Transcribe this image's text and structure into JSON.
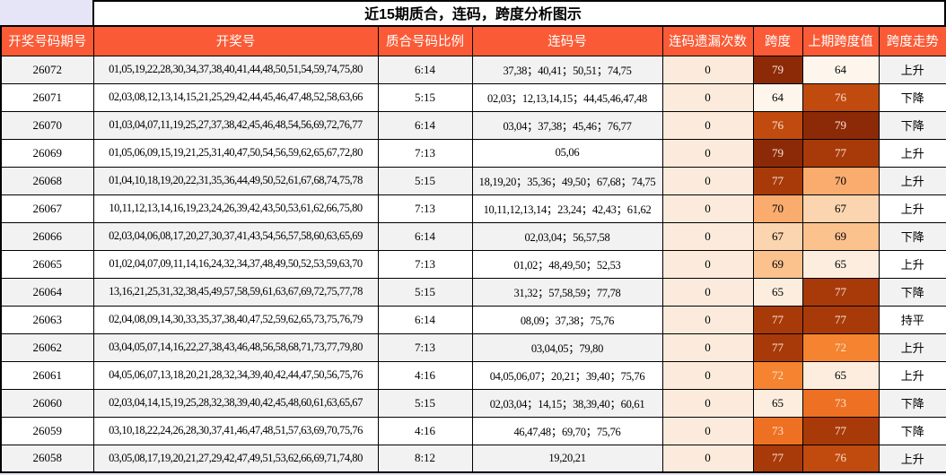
{
  "title": "近15期质合，连码，跨度分析图示",
  "palette": {
    "page_bg": "#E6E5F7",
    "title_bg": "#FFFFFF",
    "border": "#000000",
    "header_bg": "#FB5A36",
    "header_fg": "#FFFFFF",
    "row_bg": "#FFFFFF",
    "row_alt_bg": "#F2F2F2",
    "miss_bg": "#FCEBDC",
    "heat_light_text": "#F9E2D2",
    "heat_dark_text": "#000000"
  },
  "heat_colors": {
    "64": "#FEF5EC",
    "65": "#FCEDDF",
    "67": "#FBD5AF",
    "69": "#FBC28E",
    "70": "#FAAC6E",
    "72": "#F5832F",
    "73": "#EE7123",
    "76": "#C14A0F",
    "77": "#A83A0A",
    "79": "#8C2A08"
  },
  "heat_white_text_min": 72,
  "chart_data": {
    "type": "table",
    "title": "近15期质合，连码，跨度分析图示",
    "columns": [
      {
        "key": "period",
        "label": "开奖号码期号"
      },
      {
        "key": "numbers",
        "label": "开奖号"
      },
      {
        "key": "ratio",
        "label": "质合号码比例"
      },
      {
        "key": "consecutive",
        "label": "连码号"
      },
      {
        "key": "miss",
        "label": "连码遗漏次数"
      },
      {
        "key": "span",
        "label": "跨度"
      },
      {
        "key": "prev_span",
        "label": "上期跨度值"
      },
      {
        "key": "trend",
        "label": "跨度走势"
      }
    ],
    "rows": [
      {
        "period": "26072",
        "numbers": "01,05,19,22,28,30,34,37,38,40,41,44,48,50,51,54,59,74,75,80",
        "ratio": "6:14",
        "consecutive": "37,38；40,41；50,51；74,75",
        "miss": "0",
        "span": 79,
        "prev_span": 64,
        "trend": "上升"
      },
      {
        "period": "26071",
        "numbers": "02,03,08,12,13,14,15,21,25,29,42,44,45,46,47,48,52,58,63,66",
        "ratio": "5:15",
        "consecutive": "02,03；12,13,14,15；44,45,46,47,48",
        "miss": "0",
        "span": 64,
        "prev_span": 76,
        "trend": "下降"
      },
      {
        "period": "26070",
        "numbers": "01,03,04,07,11,19,25,27,37,38,42,45,46,48,54,56,69,72,76,77",
        "ratio": "6:14",
        "consecutive": "03,04；37,38；45,46；76,77",
        "miss": "0",
        "span": 76,
        "prev_span": 79,
        "trend": "下降"
      },
      {
        "period": "26069",
        "numbers": "01,05,06,09,15,19,21,25,31,40,47,50,54,56,59,62,65,67,72,80",
        "ratio": "7:13",
        "consecutive": "05,06",
        "miss": "0",
        "span": 79,
        "prev_span": 77,
        "trend": "上升"
      },
      {
        "period": "26068",
        "numbers": "01,04,10,18,19,20,22,31,35,36,44,49,50,52,61,67,68,74,75,78",
        "ratio": "5:15",
        "consecutive": "18,19,20；35,36；49,50；67,68；74,75",
        "miss": "0",
        "span": 77,
        "prev_span": 70,
        "trend": "上升"
      },
      {
        "period": "26067",
        "numbers": "10,11,12,13,14,16,19,23,24,26,39,42,43,50,53,61,62,66,75,80",
        "ratio": "7:13",
        "consecutive": "10,11,12,13,14；23,24；42,43；61,62",
        "miss": "0",
        "span": 70,
        "prev_span": 67,
        "trend": "上升"
      },
      {
        "period": "26066",
        "numbers": "02,03,04,06,08,17,20,27,30,37,41,43,54,56,57,58,60,63,65,69",
        "ratio": "6:14",
        "consecutive": "02,03,04；56,57,58",
        "miss": "0",
        "span": 67,
        "prev_span": 69,
        "trend": "下降"
      },
      {
        "period": "26065",
        "numbers": "01,02,04,07,09,11,14,16,24,32,34,37,48,49,50,52,53,59,63,70",
        "ratio": "7:13",
        "consecutive": "01,02；48,49,50；52,53",
        "miss": "0",
        "span": 69,
        "prev_span": 65,
        "trend": "上升"
      },
      {
        "period": "26064",
        "numbers": "13,16,21,25,31,32,38,45,49,57,58,59,61,63,67,69,72,75,77,78",
        "ratio": "5:15",
        "consecutive": "31,32；57,58,59；77,78",
        "miss": "0",
        "span": 65,
        "prev_span": 77,
        "trend": "下降"
      },
      {
        "period": "26063",
        "numbers": "02,04,08,09,14,30,33,35,37,38,40,47,52,59,62,65,73,75,76,79",
        "ratio": "6:14",
        "consecutive": "08,09；37,38；75,76",
        "miss": "0",
        "span": 77,
        "prev_span": 77,
        "trend": "持平"
      },
      {
        "period": "26062",
        "numbers": "03,04,05,07,14,16,22,27,38,43,46,48,56,58,68,71,73,77,79,80",
        "ratio": "7:13",
        "consecutive": "03,04,05；79,80",
        "miss": "0",
        "span": 77,
        "prev_span": 72,
        "trend": "上升"
      },
      {
        "period": "26061",
        "numbers": "04,05,06,07,13,18,20,21,28,32,34,39,40,42,44,47,50,56,75,76",
        "ratio": "4:16",
        "consecutive": "04,05,06,07；20,21；39,40；75,76",
        "miss": "0",
        "span": 72,
        "prev_span": 65,
        "trend": "上升"
      },
      {
        "period": "26060",
        "numbers": "02,03,04,14,15,19,25,28,32,38,39,40,42,45,48,60,61,63,65,67",
        "ratio": "5:15",
        "consecutive": "02,03,04；14,15；38,39,40；60,61",
        "miss": "0",
        "span": 65,
        "prev_span": 73,
        "trend": "下降"
      },
      {
        "period": "26059",
        "numbers": "03,10,18,22,24,26,28,30,37,41,46,47,48,51,57,63,69,70,75,76",
        "ratio": "4:16",
        "consecutive": "46,47,48；69,70；75,76",
        "miss": "0",
        "span": 73,
        "prev_span": 77,
        "trend": "下降"
      },
      {
        "period": "26058",
        "numbers": "03,05,08,17,19,20,21,27,29,42,47,49,51,53,62,66,69,71,74,80",
        "ratio": "8:12",
        "consecutive": "19,20,21",
        "miss": "0",
        "span": 77,
        "prev_span": 76,
        "trend": "上升"
      }
    ]
  }
}
